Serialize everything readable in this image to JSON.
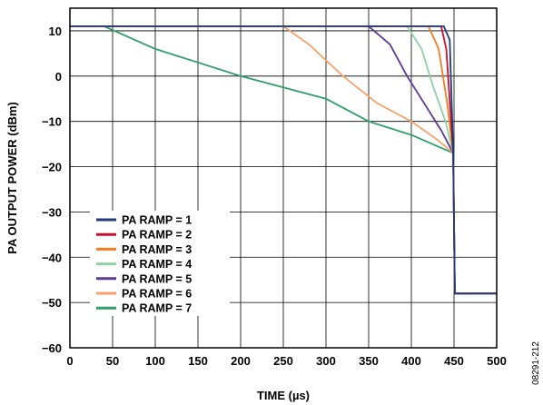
{
  "chart_data": {
    "type": "line",
    "xlabel": "TIME (µs)",
    "ylabel": "PA OUTPUT POWER (dBm)",
    "xlim": [
      0,
      500
    ],
    "ylim": [
      -60,
      15
    ],
    "x_ticks": [
      "0",
      "50",
      "100",
      "150",
      "200",
      "250",
      "300",
      "350",
      "400",
      "450",
      "500"
    ],
    "y_ticks": [
      "10",
      "0",
      "−10",
      "−20",
      "−30",
      "−40",
      "−50",
      "−60"
    ],
    "grid": true,
    "legend_position": "left-middle",
    "figure_id": "08291-212",
    "series": [
      {
        "name": "PA RAMP = 1",
        "color": "#1f3b7a",
        "points": [
          [
            0,
            11
          ],
          [
            438,
            11
          ],
          [
            445,
            8
          ],
          [
            449,
            -17
          ],
          [
            451,
            -48
          ],
          [
            500,
            -48
          ]
        ]
      },
      {
        "name": "PA RAMP = 2",
        "color": "#c8102e",
        "points": [
          [
            0,
            11
          ],
          [
            435,
            11
          ],
          [
            441,
            6
          ],
          [
            449,
            -17
          ],
          [
            451,
            -48
          ],
          [
            500,
            -48
          ]
        ]
      },
      {
        "name": "PA RAMP = 3",
        "color": "#f47b20",
        "points": [
          [
            0,
            11
          ],
          [
            420,
            11
          ],
          [
            432,
            6
          ],
          [
            442,
            -6
          ],
          [
            449,
            -17
          ],
          [
            451,
            -48
          ],
          [
            500,
            -48
          ]
        ]
      },
      {
        "name": "PA RAMP = 4",
        "color": "#8fd1a6",
        "points": [
          [
            0,
            11
          ],
          [
            395,
            11
          ],
          [
            412,
            6
          ],
          [
            425,
            -2
          ],
          [
            440,
            -10
          ],
          [
            449,
            -17
          ],
          [
            451,
            -48
          ],
          [
            500,
            -48
          ]
        ]
      },
      {
        "name": "PA RAMP = 5",
        "color": "#5b3a96",
        "points": [
          [
            0,
            11
          ],
          [
            350,
            11
          ],
          [
            375,
            7
          ],
          [
            395,
            0
          ],
          [
            415,
            -6
          ],
          [
            435,
            -12
          ],
          [
            449,
            -17
          ],
          [
            451,
            -48
          ],
          [
            500,
            -48
          ]
        ]
      },
      {
        "name": "PA RAMP = 6",
        "color": "#f8a26b",
        "points": [
          [
            0,
            11
          ],
          [
            250,
            11
          ],
          [
            280,
            7
          ],
          [
            320,
            0
          ],
          [
            360,
            -6
          ],
          [
            400,
            -10
          ],
          [
            430,
            -14
          ],
          [
            449,
            -17
          ],
          [
            451,
            -48
          ],
          [
            500,
            -48
          ]
        ]
      },
      {
        "name": "PA RAMP = 7",
        "color": "#2e9e6b",
        "points": [
          [
            0,
            11
          ],
          [
            40,
            11
          ],
          [
            100,
            6
          ],
          [
            150,
            3
          ],
          [
            200,
            0
          ],
          [
            250,
            -2.5
          ],
          [
            300,
            -5
          ],
          [
            350,
            -10
          ],
          [
            400,
            -13
          ],
          [
            449,
            -17
          ],
          [
            451,
            -48
          ],
          [
            500,
            -48
          ]
        ]
      }
    ]
  }
}
